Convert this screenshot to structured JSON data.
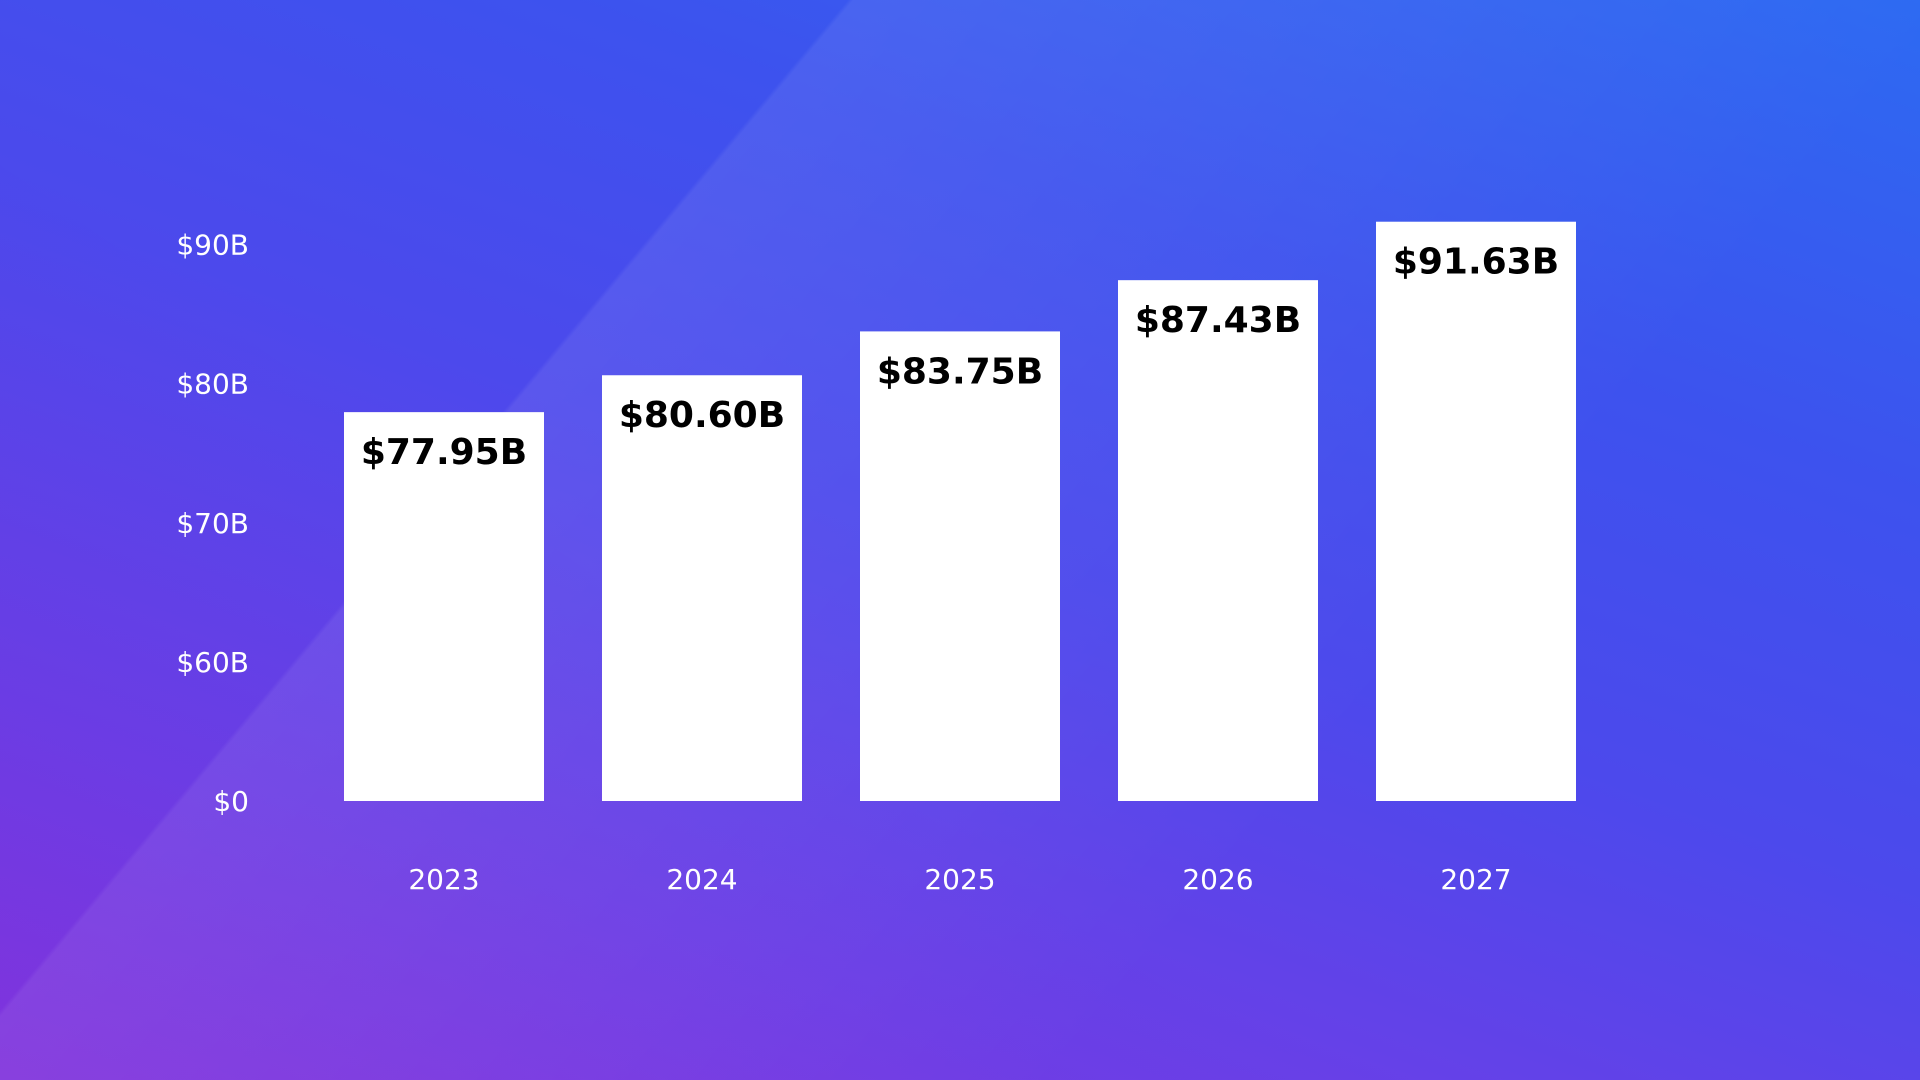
{
  "chart_data": {
    "type": "bar",
    "title": "",
    "xlabel": "",
    "ylabel": "",
    "categories": [
      "2023",
      "2024",
      "2025",
      "2026",
      "2027"
    ],
    "values": [
      77.95,
      80.6,
      83.75,
      87.43,
      91.63
    ],
    "data_labels": [
      "$77.95B",
      "$80.60B",
      "$83.75B",
      "$87.43B",
      "$91.63B"
    ],
    "y_ticks": [
      0,
      60,
      70,
      80,
      90
    ],
    "y_tick_labels": [
      "$0",
      "$60B",
      "$70B",
      "$80B",
      "$90B"
    ],
    "y_axis_note": "broken axis: $0 then $60B to $90B in equal steps",
    "grid": false,
    "legend": "none",
    "colors": {
      "bar": "#ffffff",
      "data_label": "#000000",
      "tick_label": "#ffffff",
      "background_start": "#8a34df",
      "background_end": "#2d6af2"
    }
  }
}
